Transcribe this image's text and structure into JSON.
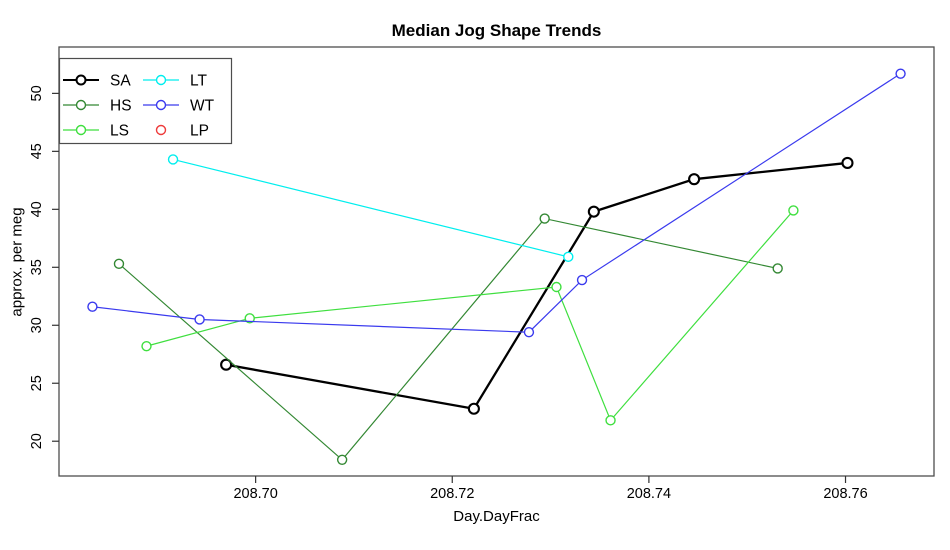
{
  "chart_data": {
    "type": "line",
    "title": "Median Jog Shape Trends",
    "xlabel": "Day.DayFrac",
    "ylabel": "approx. per meg",
    "xlim": [
      208.68,
      208.769
    ],
    "ylim": [
      17,
      54
    ],
    "grid": false,
    "x_ticks": [
      208.7,
      208.72,
      208.74,
      208.76
    ],
    "x_tick_labels": [
      "208.70",
      "208.72",
      "208.74",
      "208.76"
    ],
    "y_ticks": [
      20,
      25,
      30,
      35,
      40,
      45,
      50
    ],
    "y_tick_labels": [
      "20",
      "25",
      "30",
      "35",
      "40",
      "45",
      "50"
    ],
    "legend_position": "top-left",
    "legend_columns": 2,
    "legend_order": [
      "SA",
      "HS",
      "LS",
      "LT",
      "WT",
      "LP"
    ],
    "series": [
      {
        "name": "SA",
        "color": "#000000",
        "line_width": 2.3,
        "marker": "open-circle",
        "legend_line": true,
        "points": [
          [
            208.697,
            26.6
          ],
          [
            208.7222,
            22.8
          ],
          [
            208.7344,
            39.8
          ],
          [
            208.7446,
            42.6
          ],
          [
            208.7602,
            44.0
          ]
        ]
      },
      {
        "name": "HS",
        "color": "#338833",
        "line_width": 1.2,
        "marker": "open-circle",
        "legend_line": true,
        "points": [
          [
            208.6861,
            35.3
          ],
          [
            208.7088,
            18.4
          ],
          [
            208.7294,
            39.2
          ],
          [
            208.7531,
            34.9
          ]
        ]
      },
      {
        "name": "LS",
        "color": "#3FDF3F",
        "line_width": 1.2,
        "marker": "open-circle",
        "legend_line": true,
        "points": [
          [
            208.6889,
            28.2
          ],
          [
            208.6994,
            30.6
          ],
          [
            208.7306,
            33.3
          ],
          [
            208.7361,
            21.8
          ],
          [
            208.7547,
            39.9
          ]
        ]
      },
      {
        "name": "LT",
        "color": "#00EEEE",
        "line_width": 1.2,
        "marker": "open-circle",
        "legend_line": true,
        "points": [
          [
            208.6916,
            44.3
          ],
          [
            208.7318,
            35.9
          ]
        ]
      },
      {
        "name": "WT",
        "color": "#3A3AEE",
        "line_width": 1.2,
        "marker": "open-circle",
        "legend_line": true,
        "points": [
          [
            208.6834,
            31.6
          ],
          [
            208.6943,
            30.5
          ],
          [
            208.7278,
            29.4
          ],
          [
            208.7332,
            33.9
          ],
          [
            208.7656,
            51.7
          ]
        ]
      },
      {
        "name": "LP",
        "color": "#EE3B3B",
        "line_width": 1.2,
        "marker": "open-circle",
        "legend_line": false,
        "points": []
      }
    ],
    "colors": {
      "background": "#ffffff",
      "plot_border": "#4d4d4d",
      "tick": "#333333",
      "text": "#000000"
    }
  }
}
